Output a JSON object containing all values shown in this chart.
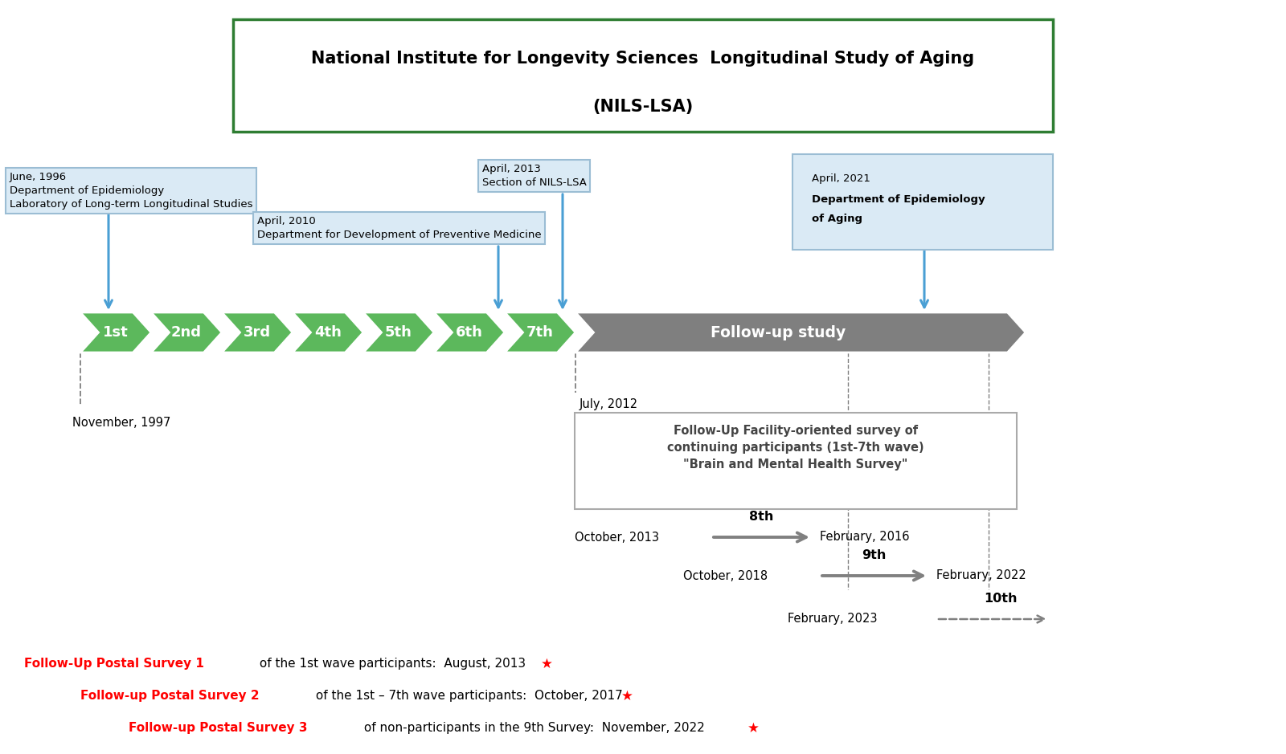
{
  "title_line1": "National Institute for Longevity Sciences  Longitudinal Study of Aging",
  "title_line2": "(NILS-LSA)",
  "bg_color": "#ffffff",
  "green_color": "#5cb85c",
  "gray_color": "#7f7f7f",
  "blue_arrow_color": "#4a9fd4",
  "light_blue_box_color": "#daeaf5",
  "red_color": "#ff0000",
  "waves": [
    "1st",
    "2nd",
    "3rd",
    "4th",
    "5th",
    "6th",
    "7th"
  ],
  "followup_label": "Follow-up study",
  "box1_text": "June, 1996\nDepartment of Epidemiology\nLaboratory of Long-term Longitudinal Studies",
  "box2_text": "April, 2010\nDepartment for Development of Preventive Medicine",
  "box3_text": "April, 2013\nSection of NILS-LSA",
  "box4_line1": "April, 2021",
  "box4_bold": "Department of Epidemiology\nof Aging",
  "nov1997": "November, 1997",
  "july2012": "July, 2012",
  "followup_box_text": "Follow-Up Facility-oriented survey of\ncontinuing participants (1st-7th wave)\n\"Brain and Mental Health Survey\"",
  "wave8_label": "8th",
  "wave8_start": "October, 2013",
  "wave8_end": "February, 2016",
  "wave9_label": "9th",
  "wave9_start": "October, 2018",
  "wave9_end": "February, 2022",
  "wave10_label": "10th",
  "wave10_start": "February, 2023",
  "postal1_bold": "Follow-Up Postal Survey 1",
  "postal1_rest": " of the 1st wave participants:  August, 2013",
  "postal2_bold": "Follow-up Postal Survey 2",
  "postal2_rest": " of the 1st – 7th wave participants:  October, 2017",
  "postal3_bold": "Follow-up Postal Survey 3",
  "postal3_rest": " of non-participants in the 9th Survey:  November, 2022"
}
